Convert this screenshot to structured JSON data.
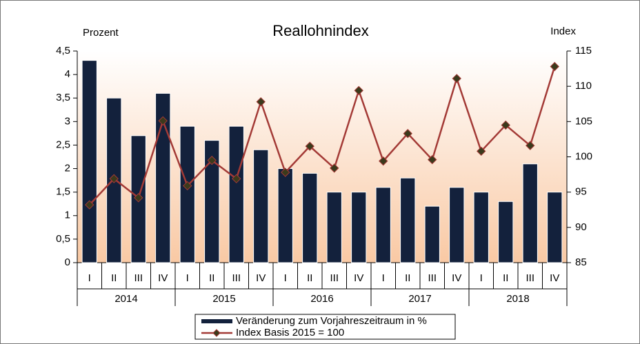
{
  "chart_data": {
    "type": "bar_line",
    "title": "Reallohnindex",
    "y_label": "Prozent",
    "y2_label": "Index",
    "categories": [
      "I",
      "II",
      "III",
      "IV",
      "I",
      "II",
      "III",
      "IV",
      "I",
      "II",
      "III",
      "IV",
      "I",
      "II",
      "III",
      "IV",
      "I",
      "II",
      "III",
      "IV"
    ],
    "groups": [
      "2014",
      "2015",
      "2016",
      "2017",
      "2018"
    ],
    "series": [
      {
        "name": "Veränderung zum Vorjahreszeitraum in %",
        "type": "bar",
        "color": "#13213c",
        "values": [
          4.3,
          3.5,
          2.7,
          3.6,
          2.9,
          2.6,
          2.9,
          2.4,
          2.0,
          1.9,
          1.5,
          1.5,
          1.6,
          1.8,
          1.2,
          1.6,
          1.5,
          1.3,
          2.1,
          1.5
        ]
      },
      {
        "name": "Index Basis 2015 = 100",
        "type": "line",
        "axis": "y2",
        "color": "#a33a36",
        "marker_color": "#3b3a1c",
        "values": [
          93.2,
          96.9,
          94.2,
          105.1,
          95.9,
          99.5,
          96.9,
          107.8,
          97.8,
          101.5,
          98.4,
          109.4,
          99.4,
          103.3,
          99.6,
          111.1,
          100.8,
          104.5,
          101.6,
          112.8
        ]
      }
    ],
    "ylim": [
      0,
      4.5
    ],
    "yticks": [
      0,
      {
        "value": 0.5,
        "label": "0,5"
      },
      1,
      {
        "value": 1.5,
        "label": "1,5"
      },
      2,
      {
        "value": 2.5,
        "label": "2,5"
      },
      3,
      {
        "value": 3.5,
        "label": "3,5"
      },
      4,
      {
        "value": 4.5,
        "label": "4,5"
      }
    ],
    "y2lim": [
      85,
      115
    ],
    "y2ticks": [
      85,
      90,
      95,
      100,
      105,
      110,
      115
    ],
    "grid": false,
    "legend": "bottom"
  }
}
